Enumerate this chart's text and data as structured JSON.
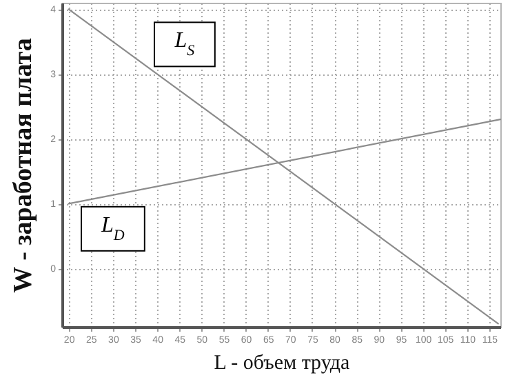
{
  "chart_data": {
    "type": "line",
    "xlabel": "L - объем труда",
    "ylabel": "W - заработная плата",
    "series": [
      {
        "name": "L$_{S}$",
        "color": "#8c8c8c",
        "x": [
          20,
          117
        ],
        "values": [
          4,
          -0.85
        ]
      },
      {
        "name": "L$_{D}$",
        "color": "#8c8c8c",
        "x": [
          20,
          117.5
        ],
        "values": [
          1,
          2.3
        ]
      }
    ],
    "xlim": [
      18.5,
      117.5
    ],
    "xticks": [
      20,
      25,
      30,
      35,
      40,
      45,
      50,
      55,
      60,
      65,
      70,
      75,
      80,
      85,
      90,
      95,
      100,
      105,
      110,
      115
    ],
    "ylim": [
      -0.9,
      4.1
    ],
    "yticks": [
      0,
      1,
      2,
      3,
      4
    ],
    "grid": true
  }
}
